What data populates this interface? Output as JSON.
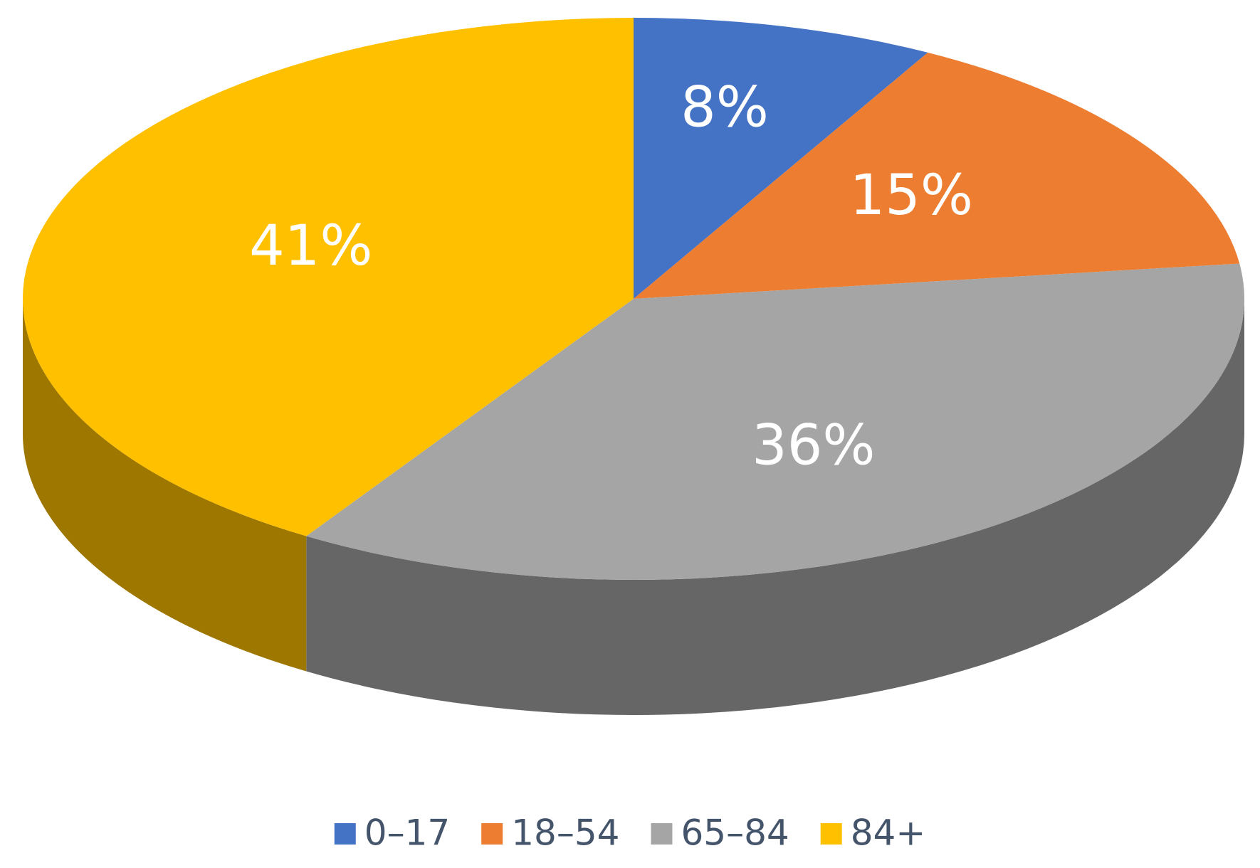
{
  "chart_data": {
    "type": "pie",
    "categories": [
      "0–17",
      "18–54",
      "65–84",
      "84+"
    ],
    "values": [
      8,
      15,
      36,
      41
    ],
    "value_labels": [
      "8%",
      "15%",
      "36%",
      "41%"
    ],
    "colors": [
      "#4472c4",
      "#ed7d31",
      "#a5a5a5",
      "#ffc000"
    ],
    "legend": "bottom"
  }
}
